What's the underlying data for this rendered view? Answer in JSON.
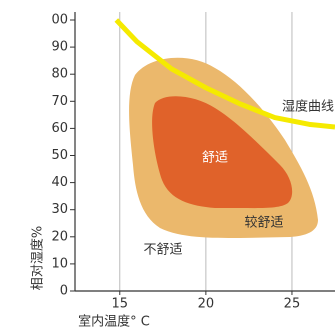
{
  "chart_data": {
    "type": "line",
    "x_label": "室内温度° C",
    "y_label": "相对湿度%",
    "xlim": [
      12.4,
      27.5
    ],
    "xticks": [
      15,
      20,
      25
    ],
    "ylim": [
      0,
      100
    ],
    "yticks": [
      0,
      10,
      20,
      30,
      40,
      50,
      60,
      70,
      80,
      90,
      {
        "value": 100,
        "label": "00"
      }
    ],
    "grid": true,
    "series": [
      {
        "color": "#f5ea00",
        "x": [
          14.8,
          16,
          18,
          20,
          22,
          24,
          26,
          27.5
        ],
        "values": [
          100,
          92,
          82,
          75,
          69,
          64,
          61.5,
          60.5
        ]
      }
    ],
    "annotations": [
      "湿度曲线",
      "舒适",
      "较舒适",
      "不舒适"
    ]
  }
}
